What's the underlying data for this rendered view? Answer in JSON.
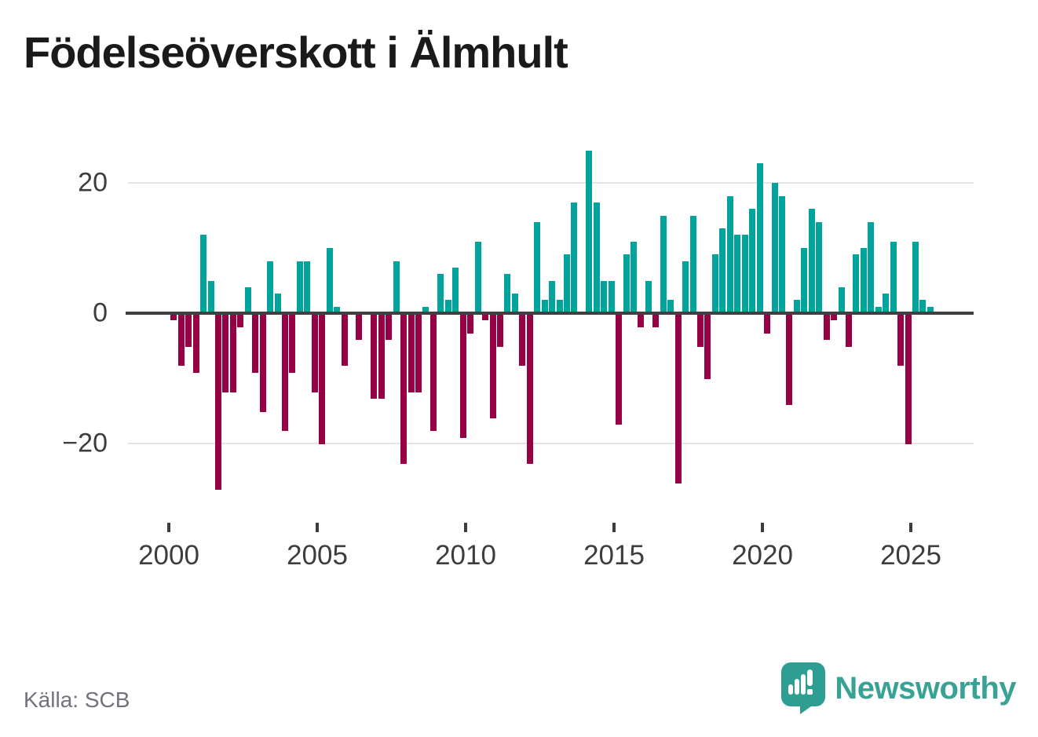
{
  "title": "Födelseöverskott i Älmhult",
  "source": "Källa: SCB",
  "branding": {
    "name": "Newsworthy"
  },
  "y_axis": {
    "labels": [
      "20",
      "0",
      "−20"
    ]
  },
  "x_axis": {
    "labels": [
      "2000",
      "2005",
      "2010",
      "2015",
      "2020",
      "2025"
    ]
  },
  "chart_data": {
    "type": "bar",
    "title": "Födelseöverskott i Älmhult",
    "frequency": "quarterly",
    "start_period": "2000Q1",
    "end_period": "2025Q3",
    "values": [
      -1,
      -8,
      -5,
      -9,
      12,
      5,
      -27,
      -12,
      -12,
      -2,
      4,
      -9,
      -15,
      8,
      3,
      -18,
      -9,
      8,
      8,
      -12,
      -20,
      10,
      1,
      -8,
      0,
      -4,
      0,
      -13,
      -13,
      -4,
      8,
      -23,
      -12,
      -12,
      1,
      -18,
      6,
      2,
      7,
      -19,
      -3,
      11,
      -1,
      -16,
      -5,
      6,
      3,
      -8,
      -23,
      14,
      2,
      5,
      2,
      9,
      17,
      0,
      25,
      17,
      5,
      5,
      -17,
      9,
      11,
      -2,
      5,
      -2,
      15,
      2,
      -26,
      8,
      15,
      -5,
      -10,
      9,
      13,
      18,
      12,
      12,
      16,
      23,
      -3,
      20,
      18,
      -14,
      2,
      10,
      16,
      14,
      -4,
      -1,
      4,
      -5,
      9,
      10,
      14,
      1,
      3,
      11,
      -8,
      -20,
      11,
      2,
      1
    ],
    "y_ticks": [
      20,
      0,
      -20
    ],
    "ylim": [
      -29,
      26
    ],
    "grid": true,
    "legend": "none",
    "positive_color": "#00a49a",
    "negative_color": "#970045",
    "source": "Källa: SCB"
  }
}
